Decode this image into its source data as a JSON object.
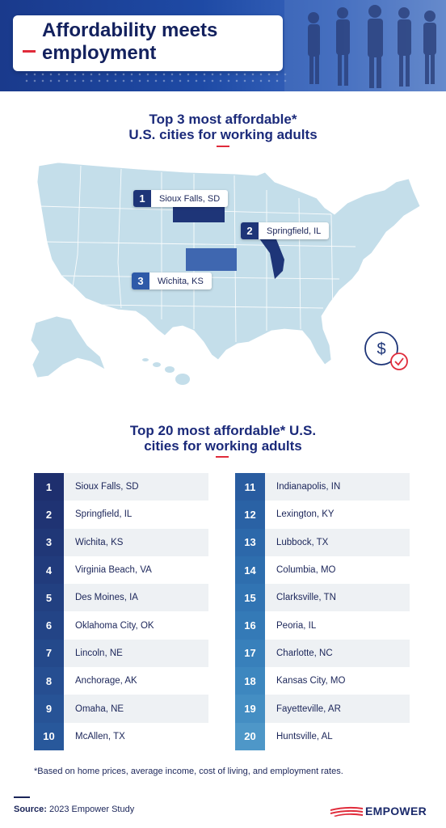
{
  "header": {
    "title": "Affordability meets\nemployment"
  },
  "map_section": {
    "title": "Top 3 most affordable*\nU.S. cities for working adults",
    "labels": [
      {
        "rank": "1",
        "city": "Sioux Falls, SD"
      },
      {
        "rank": "2",
        "city": "Springfield, IL"
      },
      {
        "rank": "3",
        "city": "Wichita, KS"
      }
    ],
    "colors": {
      "map_fill": "#c4deea",
      "highlight_dark": "#1e3578",
      "highlight_mid": "#3f67b0"
    }
  },
  "table_section": {
    "title": "Top 20 most affordable* U.S.\ncities for working adults",
    "rows": [
      {
        "rank": "1",
        "city": "Sioux Falls, SD",
        "color": "#1e2f6e"
      },
      {
        "rank": "2",
        "city": "Springfield, IL",
        "color": "#1f3373"
      },
      {
        "rank": "3",
        "city": "Wichita, KS",
        "color": "#203777"
      },
      {
        "rank": "4",
        "city": "Virginia Beach, VA",
        "color": "#213b7c"
      },
      {
        "rank": "5",
        "city": "Des Moines, IA",
        "color": "#224081"
      },
      {
        "rank": "6",
        "city": "Oklahoma City, OK",
        "color": "#234486"
      },
      {
        "rank": "7",
        "city": "Lincoln, NE",
        "color": "#24498b"
      },
      {
        "rank": "8",
        "city": "Anchorage, AK",
        "color": "#264e91"
      },
      {
        "rank": "9",
        "city": "Omaha, NE",
        "color": "#275396"
      },
      {
        "rank": "10",
        "city": "McAllen, TX",
        "color": "#28589b"
      },
      {
        "rank": "11",
        "city": "Indianapolis, IN",
        "color": "#295ca0"
      },
      {
        "rank": "12",
        "city": "Lexington, KY",
        "color": "#2a62a5"
      },
      {
        "rank": "13",
        "city": "Lubbock, TX",
        "color": "#2c68aa"
      },
      {
        "rank": "14",
        "city": "Columbia, MO",
        "color": "#2e6eae"
      },
      {
        "rank": "15",
        "city": "Clarksville, TN",
        "color": "#3174b3"
      },
      {
        "rank": "16",
        "city": "Peoria, IL",
        "color": "#347ab7"
      },
      {
        "rank": "17",
        "city": "Charlotte, NC",
        "color": "#3880bb"
      },
      {
        "rank": "18",
        "city": "Kansas City, MO",
        "color": "#3d87bf"
      },
      {
        "rank": "19",
        "city": "Fayetteville, AR",
        "color": "#448ec3"
      },
      {
        "rank": "20",
        "city": "Huntsville, AL",
        "color": "#4e97c8"
      }
    ]
  },
  "footnote": "*Based on home prices, average income, cost of living, and employment rates.",
  "source": {
    "label": "Source:",
    "text": "2023 Empower Study"
  },
  "logo": {
    "text": "EMPOWER",
    "accent": "#e02b3a"
  }
}
